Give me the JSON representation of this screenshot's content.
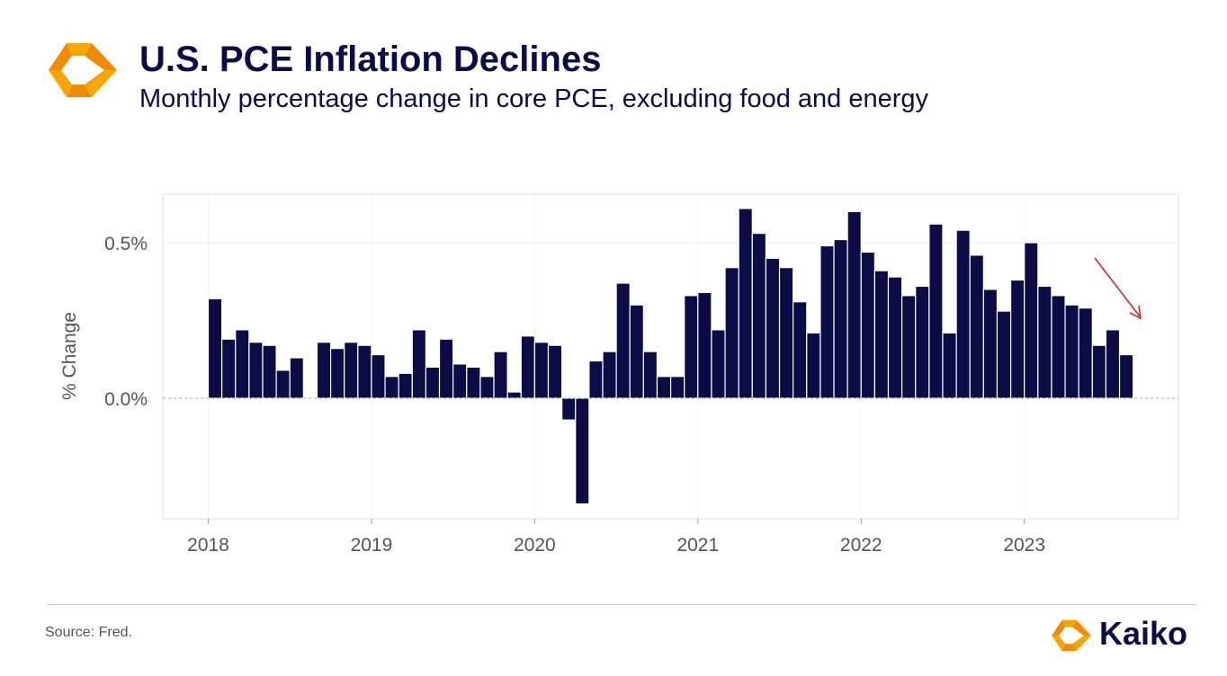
{
  "header": {
    "title": "U.S. PCE Inflation Declines",
    "subtitle": "Monthly percentage change in core PCE, excluding food and energy"
  },
  "footer": {
    "source": "Source: Fred.",
    "brand": "Kaiko"
  },
  "colors": {
    "bar": "#0b0b45",
    "brand_orange": "#f7931e",
    "arrow": "#d62728"
  },
  "chart_data": {
    "type": "bar",
    "ylabel": "% Change",
    "xlabel": "",
    "ylim": [
      -0.38,
      0.65
    ],
    "yticks": [
      {
        "value": 0.0,
        "label": "0.0%"
      },
      {
        "value": 0.5,
        "label": "0.5%"
      }
    ],
    "xticks": [
      {
        "index": 0,
        "label": "2018"
      },
      {
        "index": 12,
        "label": "2019"
      },
      {
        "index": 24,
        "label": "2020"
      },
      {
        "index": 36,
        "label": "2021"
      },
      {
        "index": 48,
        "label": "2022"
      },
      {
        "index": 60,
        "label": "2023"
      }
    ],
    "grid": true,
    "annotation": "downward arrow near the most recent months",
    "categories": [
      "2018-01",
      "2018-02",
      "2018-03",
      "2018-04",
      "2018-05",
      "2018-06",
      "2018-07",
      "2018-08",
      "2018-09",
      "2018-10",
      "2018-11",
      "2018-12",
      "2019-01",
      "2019-02",
      "2019-03",
      "2019-04",
      "2019-05",
      "2019-06",
      "2019-07",
      "2019-08",
      "2019-09",
      "2019-10",
      "2019-11",
      "2019-12",
      "2020-01",
      "2020-02",
      "2020-03",
      "2020-04",
      "2020-05",
      "2020-06",
      "2020-07",
      "2020-08",
      "2020-09",
      "2020-10",
      "2020-11",
      "2020-12",
      "2021-01",
      "2021-02",
      "2021-03",
      "2021-04",
      "2021-05",
      "2021-06",
      "2021-07",
      "2021-08",
      "2021-09",
      "2021-10",
      "2021-11",
      "2021-12",
      "2022-01",
      "2022-02",
      "2022-03",
      "2022-04",
      "2022-05",
      "2022-06",
      "2022-07",
      "2022-08",
      "2022-09",
      "2022-10",
      "2022-11",
      "2022-12",
      "2023-01",
      "2023-02",
      "2023-03",
      "2023-04",
      "2023-05",
      "2023-06",
      "2023-07",
      "2023-08"
    ],
    "values": [
      0.32,
      0.19,
      0.22,
      0.18,
      0.17,
      0.09,
      0.13,
      0.0,
      0.18,
      0.16,
      0.18,
      0.17,
      0.14,
      0.07,
      0.08,
      0.22,
      0.1,
      0.19,
      0.11,
      0.1,
      0.07,
      0.15,
      0.02,
      0.2,
      0.18,
      0.17,
      -0.07,
      -0.34,
      0.12,
      0.15,
      0.37,
      0.3,
      0.15,
      0.07,
      0.07,
      0.33,
      0.34,
      0.22,
      0.42,
      0.61,
      0.53,
      0.45,
      0.42,
      0.31,
      0.21,
      0.49,
      0.51,
      0.6,
      0.47,
      0.41,
      0.39,
      0.33,
      0.36,
      0.56,
      0.21,
      0.54,
      0.46,
      0.35,
      0.28,
      0.38,
      0.5,
      0.36,
      0.33,
      0.3,
      0.29,
      0.17,
      0.22,
      0.14
    ]
  }
}
